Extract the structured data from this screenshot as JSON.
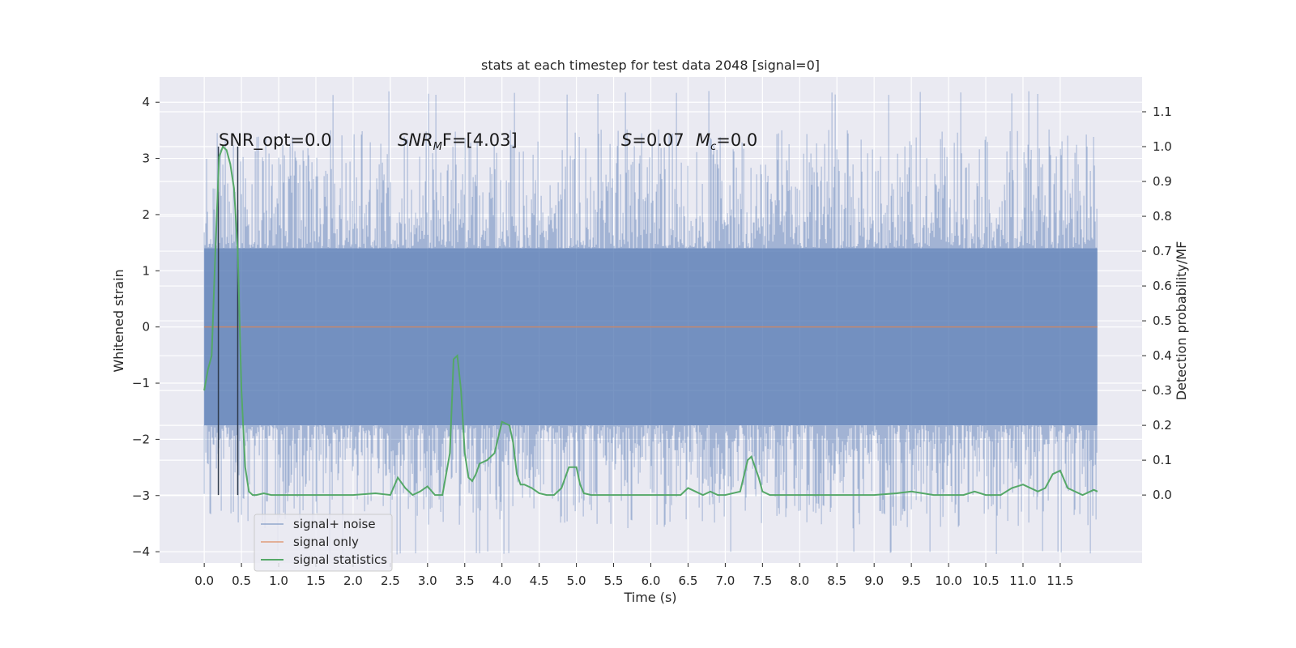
{
  "chart_data": {
    "type": "line",
    "title": "stats at each timestep for test data 2048 [signal=0]",
    "xlabel": "Time (s)",
    "ylabel": "Whitened strain",
    "ylabel_right": "Detection probability/MF",
    "xlim": [
      -0.6,
      12.6
    ],
    "ylim": [
      -4.2,
      4.45
    ],
    "ylim_right": [
      -0.195,
      1.2
    ],
    "x_ticks": [
      "0.0",
      "0.5",
      "1.0",
      "1.5",
      "2.0",
      "2.5",
      "3.0",
      "3.5",
      "4.0",
      "4.5",
      "5.0",
      "5.5",
      "6.0",
      "6.5",
      "7.0",
      "7.5",
      "8.0",
      "8.5",
      "9.0",
      "9.5",
      "10.0",
      "10.5",
      "11.0",
      "11.5"
    ],
    "y_ticks": [
      "4",
      "3",
      "2",
      "1",
      "0",
      "−1",
      "−2",
      "−3",
      "−4"
    ],
    "y_ticks_right": [
      "1.1",
      "1.0",
      "0.9",
      "0.8",
      "0.7",
      "0.6",
      "0.5",
      "0.4",
      "0.3",
      "0.2",
      "0.1",
      "0.0"
    ],
    "annotations": {
      "snr_opt": "SNR_opt=0.0",
      "snr_mf_label": "SNR",
      "snr_mf_sub": "M",
      "snr_mf_rest": "F=[4.03]",
      "s_label": "S",
      "s_value": "=0.07",
      "mc_label": "M",
      "mc_sub": "c",
      "mc_value": "=0.0"
    },
    "vertical_markers": [
      0.19,
      0.45
    ],
    "legend": {
      "placement": "lower-left",
      "entries": [
        "signal+ noise",
        "signal only",
        "signal statistics"
      ]
    },
    "series": [
      {
        "name": "signal+ noise",
        "color": "#4c72b0",
        "description": "whitened noise, mostly within ±1.4 with peaks to about ±4",
        "x_range": [
          0.0,
          12.0
        ],
        "band": [
          -1.75,
          1.4
        ]
      },
      {
        "name": "signal only",
        "color": "#dd8452",
        "x": [
          0.0,
          12.0
        ],
        "y": [
          0.0,
          0.0
        ]
      },
      {
        "name": "signal statistics",
        "color": "#55a868",
        "axis": "right",
        "x": [
          0.0,
          0.05,
          0.1,
          0.15,
          0.2,
          0.25,
          0.3,
          0.35,
          0.4,
          0.45,
          0.5,
          0.55,
          0.6,
          0.65,
          0.7,
          0.8,
          0.9,
          1.0,
          1.5,
          2.0,
          2.3,
          2.5,
          2.6,
          2.7,
          2.8,
          2.9,
          3.0,
          3.1,
          3.2,
          3.3,
          3.35,
          3.4,
          3.45,
          3.5,
          3.55,
          3.6,
          3.65,
          3.7,
          3.8,
          3.9,
          4.0,
          4.1,
          4.15,
          4.2,
          4.25,
          4.3,
          4.4,
          4.5,
          4.6,
          4.7,
          4.8,
          4.9,
          5.0,
          5.05,
          5.1,
          5.2,
          5.3,
          5.5,
          6.0,
          6.4,
          6.5,
          6.6,
          6.7,
          6.8,
          6.9,
          7.0,
          7.2,
          7.3,
          7.35,
          7.4,
          7.45,
          7.5,
          7.6,
          7.8,
          8.0,
          9.0,
          9.3,
          9.5,
          9.8,
          10.0,
          10.2,
          10.35,
          10.5,
          10.7,
          10.85,
          11.0,
          11.2,
          11.3,
          11.4,
          11.5,
          11.6,
          11.8,
          11.95,
          12.0
        ],
        "y": [
          0.3,
          0.36,
          0.4,
          0.7,
          0.97,
          1.0,
          0.99,
          0.95,
          0.88,
          0.7,
          0.3,
          0.08,
          0.01,
          0.0,
          0.0,
          0.005,
          0.0,
          0.0,
          0.0,
          0.0,
          0.005,
          0.0,
          0.05,
          0.02,
          0.0,
          0.01,
          0.025,
          0.0,
          0.0,
          0.12,
          0.39,
          0.4,
          0.3,
          0.12,
          0.05,
          0.04,
          0.06,
          0.09,
          0.1,
          0.12,
          0.21,
          0.2,
          0.15,
          0.06,
          0.03,
          0.03,
          0.02,
          0.005,
          0.0,
          0.0,
          0.02,
          0.08,
          0.08,
          0.03,
          0.005,
          0.0,
          0.0,
          0.0,
          0.0,
          0.0,
          0.02,
          0.01,
          0.0,
          0.01,
          0.0,
          0.0,
          0.01,
          0.1,
          0.11,
          0.08,
          0.05,
          0.01,
          0.0,
          0.0,
          0.0,
          0.0,
          0.005,
          0.01,
          0.0,
          0.0,
          0.0,
          0.01,
          0.0,
          0.0,
          0.02,
          0.03,
          0.01,
          0.02,
          0.06,
          0.07,
          0.02,
          0.0,
          0.015,
          0.01
        ]
      }
    ]
  }
}
